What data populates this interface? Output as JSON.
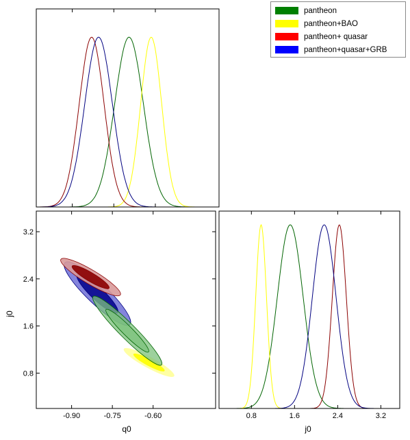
{
  "chart_data": {
    "type": "corner",
    "series": [
      {
        "name": "pantheon",
        "color": "#008000",
        "q0_mean": -0.695,
        "q0_sd": 0.052,
        "j0_mean": 1.52,
        "j0_sd": 0.24,
        "rho": -0.95,
        "filled": true,
        "contour_color": "#006400"
      },
      {
        "name": "pantheon+BAO",
        "color": "#ffff00",
        "q0_mean": -0.615,
        "q0_sd": 0.038,
        "j0_mean": 0.98,
        "j0_sd": 0.1,
        "rho": -0.9,
        "filled": true,
        "contour_color": "#ffff00"
      },
      {
        "name": "pantheon+ quasar",
        "color": "#ff0000",
        "q0_mean": -0.83,
        "q0_sd": 0.045,
        "j0_mean": 2.43,
        "j0_sd": 0.13,
        "rho": -0.9,
        "filled": false,
        "contour_color": "#8b0000"
      },
      {
        "name": "pantheon+quasar+GRB",
        "color": "#0000ff",
        "q0_mean": -0.805,
        "q0_sd": 0.05,
        "j0_mean": 2.15,
        "j0_sd": 0.22,
        "rho": -0.9,
        "filled": true,
        "contour_color": "#000080"
      }
    ],
    "panels": {
      "q0_marginal": {
        "xlim": [
          -1.03,
          -0.37
        ]
      },
      "q0_j0": {
        "xlim": [
          -1.03,
          -0.37
        ],
        "ylim": [
          0.2,
          3.55
        ],
        "xlabel": "q0",
        "ylabel": "j0",
        "xticks": [
          -0.9,
          -0.75,
          -0.6
        ],
        "xtick_labels": [
          "-0.90",
          "-0.75",
          "-0.60"
        ],
        "yticks": [
          0.8,
          1.6,
          2.4,
          3.2
        ],
        "ytick_labels": [
          "0.8",
          "1.6",
          "2.4",
          "3.2"
        ]
      },
      "j0_marginal": {
        "xlim": [
          0.2,
          3.55
        ],
        "xlabel": "j0",
        "xticks": [
          0.8,
          1.6,
          2.4,
          3.2
        ],
        "xtick_labels": [
          "0.8",
          "1.6",
          "2.4",
          "3.2"
        ]
      }
    },
    "legend_position": "top-right",
    "grid": false
  }
}
